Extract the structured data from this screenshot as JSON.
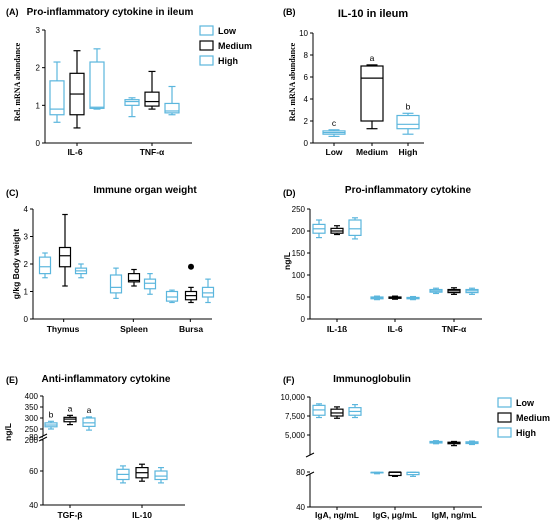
{
  "colors": {
    "Low": "#5bb6dd",
    "Medium": "#000000",
    "High": "#5bb6dd"
  },
  "legend_top": {
    "items": [
      "Low",
      "Medium",
      "High"
    ]
  },
  "legend_bottom": {
    "items": [
      "Low",
      "Medium",
      "High"
    ]
  },
  "chart_data": [
    {
      "id": "A",
      "panel_label": "(A)",
      "type": "box",
      "title": "Pro-inflammatory cytokine in ileum",
      "ylabel": "Rel. mRNA abundance",
      "ylim": [
        0,
        3
      ],
      "yticks": [
        "0",
        "1",
        "2",
        "3"
      ],
      "ytick_values": [
        0,
        1,
        2,
        3
      ],
      "categories": [
        "IL-6",
        "TNF-α"
      ],
      "series_names": [
        "Low",
        "Medium",
        "High"
      ],
      "boxes": [
        [
          [
            0.55,
            0.75,
            0.9,
            1.65,
            2.15
          ],
          [
            0.4,
            0.75,
            1.3,
            1.85,
            2.45
          ],
          [
            0.9,
            0.92,
            0.95,
            2.15,
            2.5
          ]
        ],
        [
          [
            0.7,
            1.0,
            1.1,
            1.15,
            1.2
          ],
          [
            0.9,
            0.98,
            1.1,
            1.35,
            1.9
          ],
          [
            0.75,
            0.8,
            0.85,
            1.05,
            1.5
          ]
        ]
      ],
      "annotations": [],
      "outliers": []
    },
    {
      "id": "B",
      "panel_label": "(B)",
      "type": "box",
      "title": "IL-10 in ileum",
      "ylabel": "Rel. mRNA abundance",
      "ylim": [
        0,
        10
      ],
      "yticks": [
        "0",
        "2",
        "4",
        "6",
        "8",
        "10"
      ],
      "ytick_values": [
        0,
        2,
        4,
        6,
        8,
        10
      ],
      "categories": [
        "Low",
        "Medium",
        "High"
      ],
      "series_names": [
        "Low",
        "Medium",
        "High"
      ],
      "boxes": [
        [
          [
            0.6,
            0.8,
            0.95,
            1.1,
            1.2
          ]
        ],
        [
          [
            1.3,
            2.0,
            5.9,
            7.0,
            7.1
          ]
        ],
        [
          [
            0.8,
            1.3,
            1.7,
            2.5,
            2.7
          ]
        ]
      ],
      "annotations": [
        {
          "cat": 0,
          "series": 0,
          "text": "c"
        },
        {
          "cat": 1,
          "series": 0,
          "text": "a"
        },
        {
          "cat": 2,
          "series": 0,
          "text": "b"
        }
      ],
      "outliers": []
    },
    {
      "id": "C",
      "panel_label": "(C)",
      "type": "box",
      "title": "Immune organ weight",
      "ylabel": "g/kg Body weight",
      "ylim": [
        0,
        4
      ],
      "yticks": [
        "0",
        "1",
        "2",
        "3",
        "4"
      ],
      "ytick_values": [
        0,
        1,
        2,
        3,
        4
      ],
      "categories": [
        "Thymus",
        "Spleen",
        "Bursa"
      ],
      "series_names": [
        "Low",
        "Medium",
        "High"
      ],
      "boxes": [
        [
          [
            1.5,
            1.65,
            1.9,
            2.25,
            2.4
          ],
          [
            1.2,
            1.9,
            2.3,
            2.6,
            3.8
          ],
          [
            1.5,
            1.65,
            1.75,
            1.85,
            2.0
          ]
        ],
        [
          [
            0.75,
            0.95,
            1.15,
            1.6,
            1.85
          ],
          [
            1.2,
            1.35,
            1.4,
            1.65,
            1.8
          ],
          [
            0.9,
            1.1,
            1.3,
            1.45,
            1.65
          ]
        ],
        [
          [
            0.6,
            0.65,
            0.8,
            1.0,
            1.05
          ],
          [
            0.6,
            0.7,
            0.85,
            1.0,
            1.15
          ],
          [
            0.6,
            0.8,
            0.95,
            1.15,
            1.45
          ]
        ]
      ],
      "annotations": [],
      "outliers": [
        {
          "cat": 2,
          "series": 1,
          "value": 1.9
        }
      ]
    },
    {
      "id": "D",
      "panel_label": "(D)",
      "type": "box",
      "title": "Pro-inflammatory cytokine",
      "ylabel": "ng/L",
      "ylim": [
        0,
        250
      ],
      "yticks": [
        "0",
        "50",
        "100",
        "150",
        "200",
        "250"
      ],
      "ytick_values": [
        0,
        50,
        100,
        150,
        200,
        250
      ],
      "categories": [
        "IL-1ß",
        "IL-6",
        "TNF-α"
      ],
      "series_names": [
        "Low",
        "Medium",
        "High"
      ],
      "boxes": [
        [
          [
            185,
            195,
            205,
            215,
            225
          ],
          [
            192,
            195,
            200,
            206,
            212
          ],
          [
            182,
            190,
            205,
            225,
            230
          ]
        ],
        [
          [
            44,
            46,
            48,
            50,
            52
          ],
          [
            45,
            47,
            48,
            50,
            52
          ],
          [
            44,
            46,
            47,
            49,
            51
          ]
        ],
        [
          [
            58,
            61,
            64,
            67,
            70
          ],
          [
            56,
            60,
            64,
            67,
            71
          ],
          [
            56,
            60,
            64,
            67,
            70
          ]
        ]
      ],
      "annotations": [],
      "outliers": []
    },
    {
      "id": "E",
      "panel_label": "(E)",
      "type": "box",
      "title": "Anti-inflammatory cytokine",
      "ylabel": "ng/L",
      "broken_axis": true,
      "yticks": [
        "40",
        "60",
        "80",
        "200",
        "250",
        "300",
        "350",
        "400"
      ],
      "ytick_values": [
        40,
        60,
        80,
        200,
        250,
        300,
        350,
        400
      ],
      "categories": [
        "TGF-β",
        "IL-10"
      ],
      "series_names": [
        "Low",
        "Medium",
        "High"
      ],
      "boxes": [
        [
          [
            250,
            260,
            268,
            278,
            285
          ],
          [
            270,
            283,
            295,
            303,
            312
          ],
          [
            245,
            262,
            278,
            300,
            305
          ]
        ],
        [
          [
            53,
            55,
            58,
            61,
            63
          ],
          [
            54,
            56,
            59,
            62,
            64
          ],
          [
            53,
            55,
            57,
            60,
            62
          ]
        ]
      ],
      "annotations": [
        {
          "cat": 0,
          "series": 0,
          "text": "b"
        },
        {
          "cat": 0,
          "series": 1,
          "text": "a"
        },
        {
          "cat": 0,
          "series": 2,
          "text": "a"
        }
      ],
      "outliers": []
    },
    {
      "id": "F",
      "panel_label": "(F)",
      "type": "box",
      "title": "Immunoglobulin",
      "ylabel": "",
      "broken_axis": true,
      "yticks": [
        "40",
        "80",
        "5,000",
        "7,500",
        "10,000"
      ],
      "ytick_values": [
        40,
        80,
        5000,
        7500,
        10000
      ],
      "categories": [
        "IgA, ng/mL",
        "IgG, μg/mL",
        "IgM, ng/mL"
      ],
      "series_names": [
        "Low",
        "Medium",
        "High"
      ],
      "boxes": [
        [
          [
            7300,
            7600,
            8300,
            8900,
            9100
          ],
          [
            7200,
            7500,
            7900,
            8400,
            8700
          ],
          [
            7300,
            7600,
            8100,
            8600,
            9000
          ]
        ],
        [
          [
            78,
            80,
            82,
            84,
            86
          ],
          [
            75,
            76,
            80,
            84,
            88
          ],
          [
            75,
            77,
            82,
            84,
            86
          ]
        ],
        [
          [
            3850,
            3950,
            4050,
            4150,
            4250
          ],
          [
            3600,
            3850,
            3950,
            4050,
            4150
          ],
          [
            3750,
            3880,
            3980,
            4100,
            4200
          ]
        ]
      ],
      "annotations": [],
      "outliers": []
    }
  ]
}
